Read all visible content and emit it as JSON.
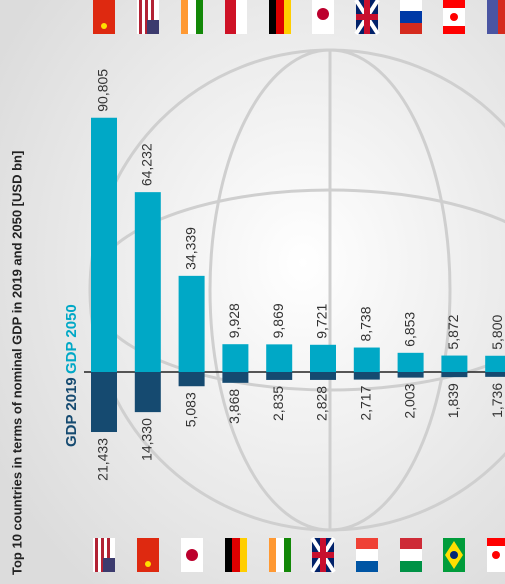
{
  "chart_data": {
    "type": "bar",
    "title": "Top 10 countries in terms of nominal GDP in 2019 and 2050 [USD bn]",
    "categories": [
      null,
      null,
      null,
      null,
      null,
      null,
      null,
      null,
      null,
      null
    ],
    "series": [
      {
        "name": "GDP 2019",
        "color": "#154a70",
        "values": [
          21433,
          14330,
          5083,
          3868,
          2835,
          2828,
          2717,
          2003,
          1839,
          1736
        ],
        "value_labels": [
          "21,433",
          "14,330",
          "5,083",
          "3,868",
          "2,835",
          "2,828",
          "2,717",
          "2,003",
          "1,839",
          "1,736"
        ]
      },
      {
        "name": "GDP 2050",
        "color": "#00a8c6",
        "values": [
          90805,
          64232,
          34339,
          9928,
          9869,
          9721,
          8738,
          6853,
          5872,
          5800
        ],
        "value_labels": [
          "90,805",
          "64,232",
          "34,339",
          "9,928",
          "9,869",
          "9,721",
          "8,738",
          "6,853",
          "5,872",
          "5,800"
        ]
      }
    ]
  }
}
